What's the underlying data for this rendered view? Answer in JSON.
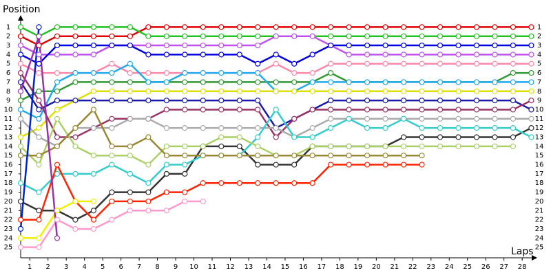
{
  "chart_data": {
    "type": "line",
    "y_label": "Position",
    "x_label": "Laps",
    "x": [
      0.5,
      1.5,
      2.5,
      3.5,
      4.5,
      5.5,
      6.5,
      7.5,
      8.5,
      9.5,
      10.5,
      11.5,
      12.5,
      13.5,
      14.5,
      15.5,
      16.5,
      17.5,
      18.5,
      19.5,
      20.5,
      21.5,
      22.5,
      23.5,
      24.5,
      25.5,
      26.5,
      27.5,
      28.5
    ],
    "xlim": [
      0.5,
      28.9
    ],
    "ylim": [
      0,
      26
    ],
    "y_inverted": true,
    "grid": false,
    "y_labels_both_sides": true,
    "xticks": [
      1,
      2,
      3,
      4,
      5,
      6,
      7,
      8,
      9,
      10,
      11,
      12,
      13,
      14,
      15,
      16,
      17,
      18,
      19,
      20,
      21,
      22,
      23,
      24,
      25,
      26,
      27,
      28
    ],
    "yticks": [
      1,
      2,
      3,
      4,
      5,
      6,
      7,
      8,
      9,
      10,
      11,
      12,
      13,
      14,
      15,
      16,
      17,
      18,
      19,
      20,
      21,
      22,
      23,
      24,
      25
    ],
    "series": [
      {
        "color": "#e00000",
        "values": [
          2,
          3,
          2,
          2,
          2,
          2,
          2,
          1,
          1,
          1,
          1,
          1,
          1,
          1,
          1,
          1,
          1,
          1,
          1,
          1,
          1,
          1,
          1,
          1,
          1,
          1,
          1,
          1,
          1
        ]
      },
      {
        "color": "#22c022",
        "values": [
          1,
          2,
          1,
          1,
          1,
          1,
          1,
          2,
          2,
          2,
          2,
          2,
          2,
          2,
          2,
          2,
          2,
          2,
          2,
          2,
          2,
          2,
          2,
          2,
          2,
          2,
          2,
          2,
          2
        ]
      },
      {
        "color": "#c050f0",
        "values": [
          3,
          4,
          4,
          4,
          4,
          3,
          3,
          3,
          3,
          3,
          3,
          3,
          3,
          3,
          2,
          2,
          2,
          3,
          4,
          4,
          4,
          4,
          4,
          4,
          4,
          4,
          4,
          4,
          4
        ]
      },
      {
        "color": "#0000e0",
        "values": [
          4,
          5,
          3,
          3,
          3,
          3,
          3,
          4,
          4,
          4,
          4,
          4,
          4,
          5,
          4,
          5,
          4,
          3,
          3,
          3,
          3,
          3,
          3,
          3,
          3,
          3,
          3,
          3,
          3
        ]
      },
      {
        "color": "#ff88aa",
        "values": [
          5,
          6,
          6,
          6,
          6,
          5,
          6,
          6,
          6,
          6,
          6,
          6,
          6,
          6,
          5,
          6,
          6,
          5,
          5,
          5,
          5,
          5,
          5,
          5,
          5,
          5,
          5,
          5,
          5
        ]
      },
      {
        "color": "#339933",
        "values": [
          9,
          8,
          8,
          7,
          7,
          7,
          7,
          7,
          7,
          7,
          7,
          7,
          7,
          7,
          7,
          7,
          7,
          6,
          7,
          7,
          7,
          7,
          7,
          7,
          7,
          7,
          7,
          6,
          6
        ]
      },
      {
        "color": "#22aaee",
        "values": [
          10,
          11,
          7,
          6,
          6,
          6,
          5,
          7,
          7,
          6,
          6,
          6,
          6,
          6,
          8,
          8,
          7,
          7,
          7,
          7,
          7,
          7,
          7,
          7,
          7,
          7,
          7,
          7,
          7
        ]
      },
      {
        "color": "#e0e000",
        "values": [
          13,
          12,
          10,
          9,
          8,
          8,
          8,
          8,
          8,
          8,
          8,
          8,
          8,
          8,
          8,
          8,
          8,
          8,
          8,
          8,
          8,
          8,
          8,
          8,
          8,
          8,
          8,
          8,
          8
        ]
      },
      {
        "color": "#1a1aaa",
        "values": [
          7,
          10,
          9,
          9,
          9,
          9,
          9,
          9,
          9,
          9,
          9,
          9,
          9,
          9,
          12,
          11,
          10,
          9,
          9,
          9,
          9,
          9,
          9,
          9,
          9,
          9,
          9,
          9,
          10
        ]
      },
      {
        "color": "#993366",
        "values": [
          6,
          9,
          13,
          13,
          12,
          11,
          11,
          11,
          10,
          10,
          10,
          10,
          10,
          10,
          13,
          11,
          10,
          10,
          10,
          10,
          10,
          10,
          10,
          10,
          10,
          10,
          10,
          10,
          9
        ]
      },
      {
        "color": "#aaaaaa",
        "values": [
          11,
          13,
          14,
          12,
          12,
          12,
          11,
          11,
          12,
          12,
          12,
          12,
          12,
          12,
          12,
          13,
          12,
          11,
          11,
          11,
          11,
          11,
          11,
          11,
          11,
          11,
          11,
          11,
          11
        ]
      },
      {
        "color": "#333333",
        "values": [
          20,
          21,
          21,
          22,
          21,
          19,
          19,
          19,
          17,
          17,
          14,
          14,
          14,
          16,
          16,
          16,
          14,
          14,
          14,
          14,
          14,
          13,
          13,
          13,
          13,
          13,
          13,
          13,
          12
        ]
      },
      {
        "color": "#33cccc",
        "values": [
          18,
          19,
          17,
          17,
          17,
          16,
          17,
          18,
          16,
          16,
          15,
          15,
          15,
          13,
          10,
          13,
          13,
          12,
          11,
          12,
          12,
          11,
          12,
          12,
          12,
          12,
          12,
          12,
          13
        ]
      },
      {
        "color": "#aad066",
        "values": [
          14,
          16,
          11,
          14,
          15,
          15,
          15,
          16,
          14,
          14,
          14,
          13,
          13,
          14,
          15,
          15,
          14,
          14,
          14,
          14,
          14,
          14,
          14,
          14,
          14,
          14,
          14,
          14,
          null
        ]
      },
      {
        "color": "#998833",
        "values": [
          15,
          15,
          14,
          12,
          10,
          14,
          14,
          13,
          15,
          15,
          15,
          15,
          15,
          15,
          15,
          15,
          15,
          15,
          15,
          15,
          15,
          15,
          15,
          null,
          null,
          null,
          null,
          null,
          null
        ]
      },
      {
        "color": "#ff2200",
        "values": [
          22,
          22,
          16,
          20,
          22,
          20,
          20,
          20,
          19,
          19,
          18,
          18,
          18,
          18,
          18,
          18,
          18,
          16,
          16,
          16,
          16,
          16,
          16,
          null,
          null,
          null,
          null,
          null,
          null
        ]
      },
      {
        "color": "#ff99cc",
        "values": [
          25,
          25,
          22,
          23,
          23,
          22,
          21,
          21,
          21,
          20,
          20,
          null,
          null,
          null,
          null,
          null,
          null,
          null,
          null,
          null,
          null,
          null,
          null,
          null,
          null,
          null,
          null,
          null,
          null
        ]
      },
      {
        "color": "#f0f000",
        "values": [
          24,
          24,
          21,
          20,
          20,
          null,
          null,
          null,
          null,
          null,
          null,
          null,
          null,
          null,
          null,
          null,
          null,
          null,
          null,
          null,
          null,
          null,
          null,
          null,
          null,
          null,
          null,
          null,
          null
        ]
      },
      {
        "color": "#0022cc",
        "values": [
          23,
          1,
          null,
          null,
          null,
          null,
          null,
          null,
          null,
          null,
          null,
          null,
          null,
          null,
          null,
          null,
          null,
          null,
          null,
          null,
          null,
          null,
          null,
          null,
          null,
          null,
          null,
          null,
          null
        ]
      },
      {
        "color": "#9933aa",
        "values": [
          8,
          2,
          24,
          null,
          null,
          null,
          null,
          null,
          null,
          null,
          null,
          null,
          null,
          null,
          null,
          null,
          null,
          null,
          null,
          null,
          null,
          null,
          null,
          null,
          null,
          null,
          null,
          null,
          null
        ]
      }
    ]
  }
}
